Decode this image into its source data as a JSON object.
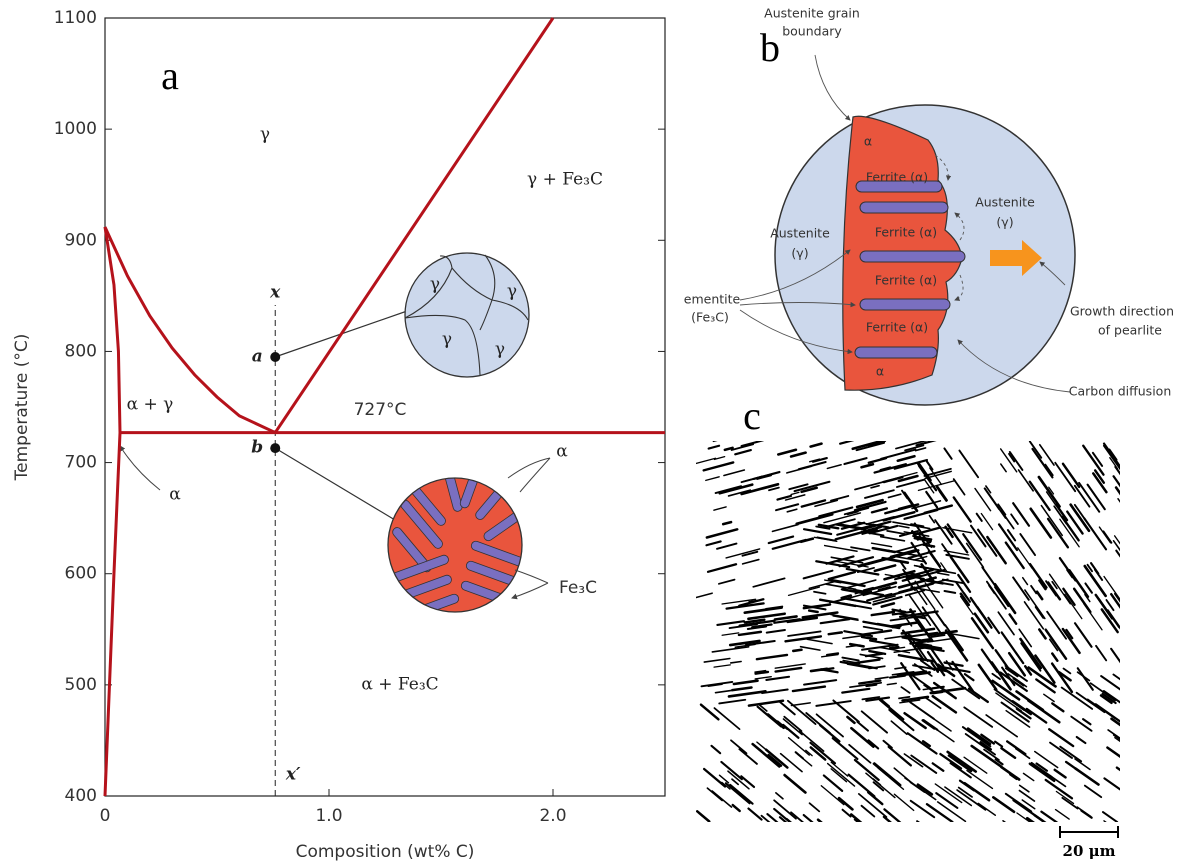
{
  "chart_data": {
    "type": "line",
    "panel_label": "a",
    "xlabel": "Composition (wt% C)",
    "ylabel": "Temperature (°C)",
    "xlim": [
      0,
      2.5
    ],
    "ylim": [
      400,
      1100
    ],
    "xticks": [
      0,
      {
        "value": 1,
        "label": "1.0"
      },
      {
        "value": 2,
        "label": "2.0"
      }
    ],
    "yticks": [
      400,
      500,
      600,
      700,
      800,
      900,
      1000,
      1100
    ],
    "color": "#b5121b",
    "series": [
      {
        "x": [
          0.76,
          2.0
        ],
        "values": [
          727,
          1100
        ]
      },
      {
        "x": [
          0,
          0.1,
          0.2,
          0.3,
          0.4,
          0.5,
          0.6,
          0.76
        ],
        "values": [
          912,
          868,
          832,
          803,
          779,
          759,
          742,
          727
        ]
      },
      {
        "x": [
          0.067,
          2.5
        ],
        "values": [
          727,
          727
        ]
      },
      {
        "x": [
          0,
          0.04,
          0.06,
          0.067,
          0.04,
          0.02,
          0
        ],
        "values": [
          912,
          860,
          800,
          727,
          600,
          500,
          400
        ]
      }
    ],
    "guide": {
      "x": 0.76,
      "labels": [
        "x",
        "x′"
      ]
    },
    "points": [
      {
        "label": "a",
        "x": 0.76,
        "y": 795
      },
      {
        "label": "b",
        "x": 0.76,
        "y": 713
      }
    ],
    "annotations": [
      "γ",
      "γ + Fe₃C",
      "α + γ",
      "727°C",
      "α",
      "α + Fe₃C"
    ],
    "inset_labels": [
      "γ",
      "γ",
      "γ",
      "γ",
      "α",
      "Fe₃C"
    ]
  },
  "panel_b": {
    "label": "b",
    "texts": [
      "Austenite grain",
      "boundary",
      "α",
      "Ferrite (α)",
      "Ferrite (α)",
      "Ferrite (α)",
      "Ferrite (α)",
      "α",
      "Austenite",
      "(γ)",
      "Austenite",
      "(γ)",
      "ementite",
      "(Fe₃C)",
      "Growth direction",
      "of pearlite",
      "Carbon diffusion"
    ]
  },
  "panel_c": {
    "label": "c",
    "scale_bar": "20 μm"
  }
}
